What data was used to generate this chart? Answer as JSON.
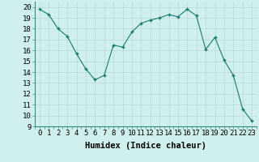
{
  "x": [
    0,
    1,
    2,
    3,
    4,
    5,
    6,
    7,
    8,
    9,
    10,
    11,
    12,
    13,
    14,
    15,
    16,
    17,
    18,
    19,
    20,
    21,
    22,
    23
  ],
  "y": [
    19.8,
    19.3,
    18.0,
    17.3,
    15.7,
    14.3,
    13.3,
    13.7,
    16.5,
    16.3,
    17.7,
    18.5,
    18.8,
    19.0,
    19.3,
    19.1,
    19.8,
    19.2,
    16.1,
    17.2,
    15.1,
    13.7,
    10.6,
    9.5
  ],
  "line_color": "#1a7a6e",
  "marker": "+",
  "marker_size": 3.5,
  "bg_color": "#cff0ec",
  "grid_major_color": "#b8d8d4",
  "grid_minor_color": "#d8eeea",
  "xlabel": "Humidex (Indice chaleur)",
  "xlabel_fontsize": 7.5,
  "tick_fontsize": 6.5,
  "ylim": [
    9,
    20.5
  ],
  "xlim": [
    -0.5,
    23.5
  ],
  "yticks": [
    9,
    10,
    11,
    12,
    13,
    14,
    15,
    16,
    17,
    18,
    19,
    20
  ],
  "xticks": [
    0,
    1,
    2,
    3,
    4,
    5,
    6,
    7,
    8,
    9,
    10,
    11,
    12,
    13,
    14,
    15,
    16,
    17,
    18,
    19,
    20,
    21,
    22,
    23
  ]
}
